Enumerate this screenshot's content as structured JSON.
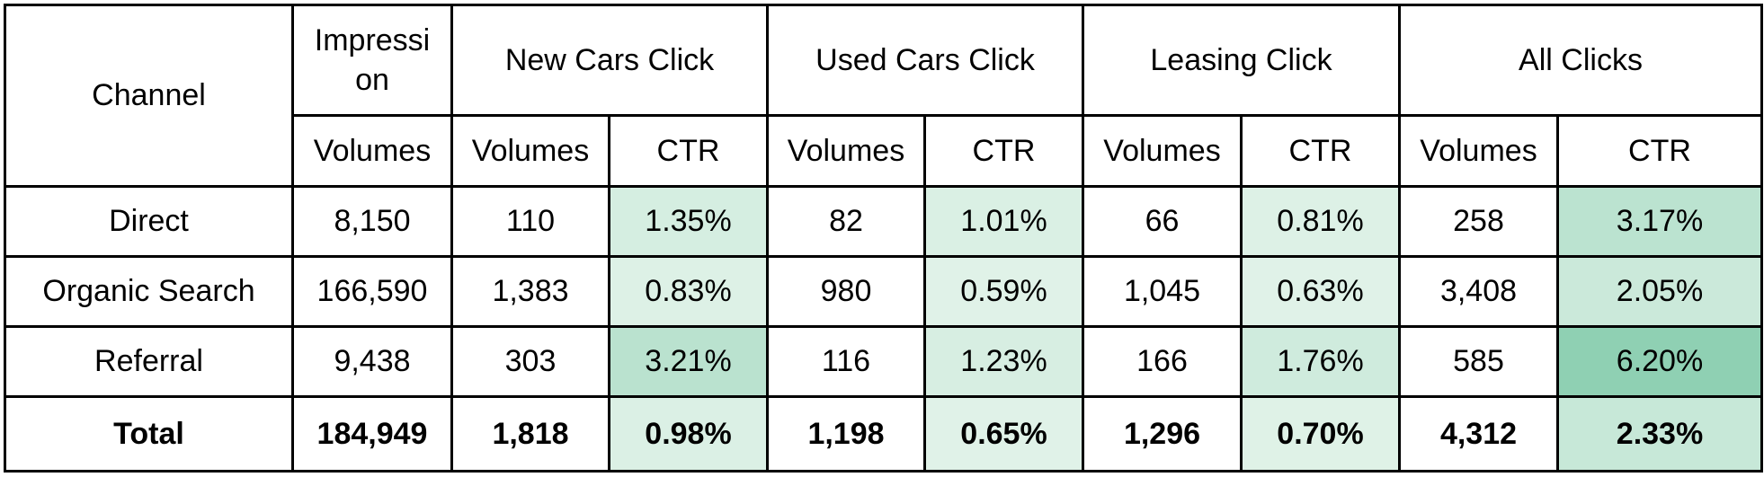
{
  "chart_data": {
    "type": "table",
    "headers": {
      "channel": "Channel",
      "impression": "Impressi\non",
      "groups": [
        "New Cars Click",
        "Used Cars Click",
        "Leasing Click",
        "All Clicks"
      ],
      "volumes": "Volumes",
      "ctr": "CTR"
    },
    "rows": [
      {
        "channel": "Direct",
        "impression": "8,150",
        "cells": [
          "110",
          "1.35%",
          "82",
          "1.01%",
          "66",
          "0.81%",
          "258",
          "3.17%"
        ],
        "ctr_values": [
          1.35,
          1.01,
          0.81,
          3.17
        ]
      },
      {
        "channel": "Organic Search",
        "impression": "166,590",
        "cells": [
          "1,383",
          "0.83%",
          "980",
          "0.59%",
          "1,045",
          "0.63%",
          "3,408",
          "2.05%"
        ],
        "ctr_values": [
          0.83,
          0.59,
          0.63,
          2.05
        ]
      },
      {
        "channel": "Referral",
        "impression": "9,438",
        "cells": [
          "303",
          "3.21%",
          "116",
          "1.23%",
          "166",
          "1.76%",
          "585",
          "6.20%"
        ],
        "ctr_values": [
          3.21,
          1.23,
          1.76,
          6.2
        ]
      }
    ],
    "total": {
      "channel": "Total",
      "impression": "184,949",
      "cells": [
        "1,818",
        "0.98%",
        "1,198",
        "0.65%",
        "1,296",
        "0.70%",
        "4,312",
        "2.33%"
      ],
      "ctr_values": [
        0.98,
        0.65,
        0.7,
        2.33
      ]
    },
    "colors": {
      "ctr_low": "#e9f6ee",
      "ctr_high": "#8fd0b3",
      "border": "#000000"
    }
  }
}
